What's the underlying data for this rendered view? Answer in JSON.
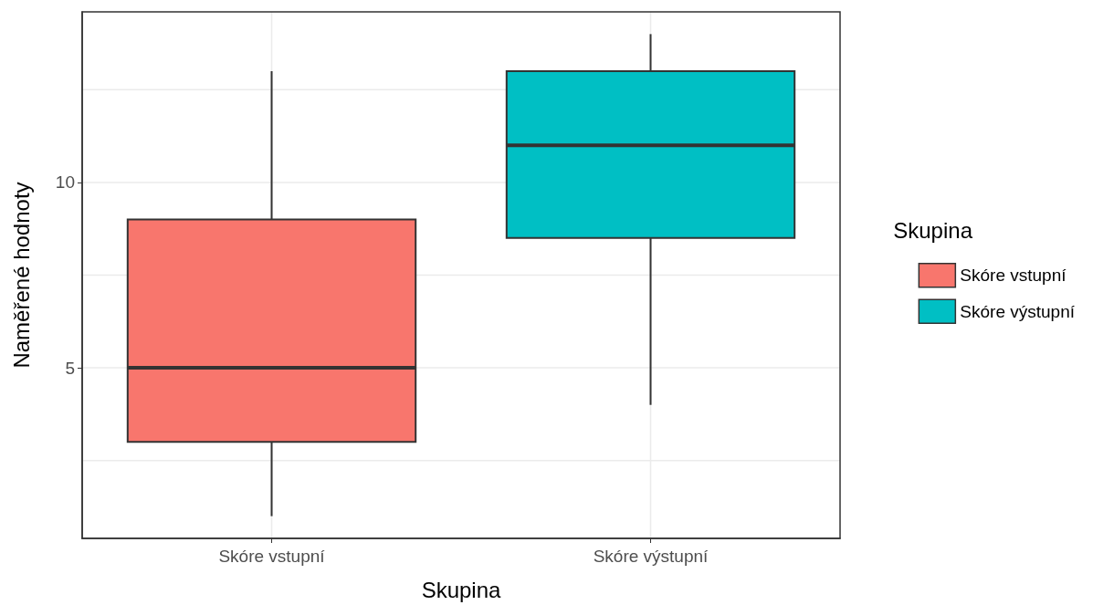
{
  "chart_data": {
    "type": "box",
    "xlabel": "Skupina",
    "ylabel": "Naměřené hodnoty",
    "legend_title": "Skupina",
    "categories": [
      "Skóre vstupní",
      "Skóre výstupní"
    ],
    "series": [
      {
        "name": "Skóre vstupní",
        "color": "#f8766d",
        "boxes": [
          {
            "low": 1,
            "q1": 3,
            "median": 5,
            "q3": 9,
            "high": 13
          },
          null
        ]
      },
      {
        "name": "Skóre výstupní",
        "color": "#00bfc4",
        "boxes": [
          null,
          {
            "low": 4,
            "q1": 8.5,
            "median": 11,
            "q3": 13,
            "high": 14
          }
        ]
      }
    ],
    "ylim": [
      0.4,
      14.6
    ],
    "yticks": [
      {
        "value": 2.5,
        "label": null
      },
      5,
      {
        "value": 7.5,
        "label": null
      },
      10,
      {
        "value": 12.5,
        "label": null
      }
    ],
    "grid": true,
    "legend": "right"
  }
}
